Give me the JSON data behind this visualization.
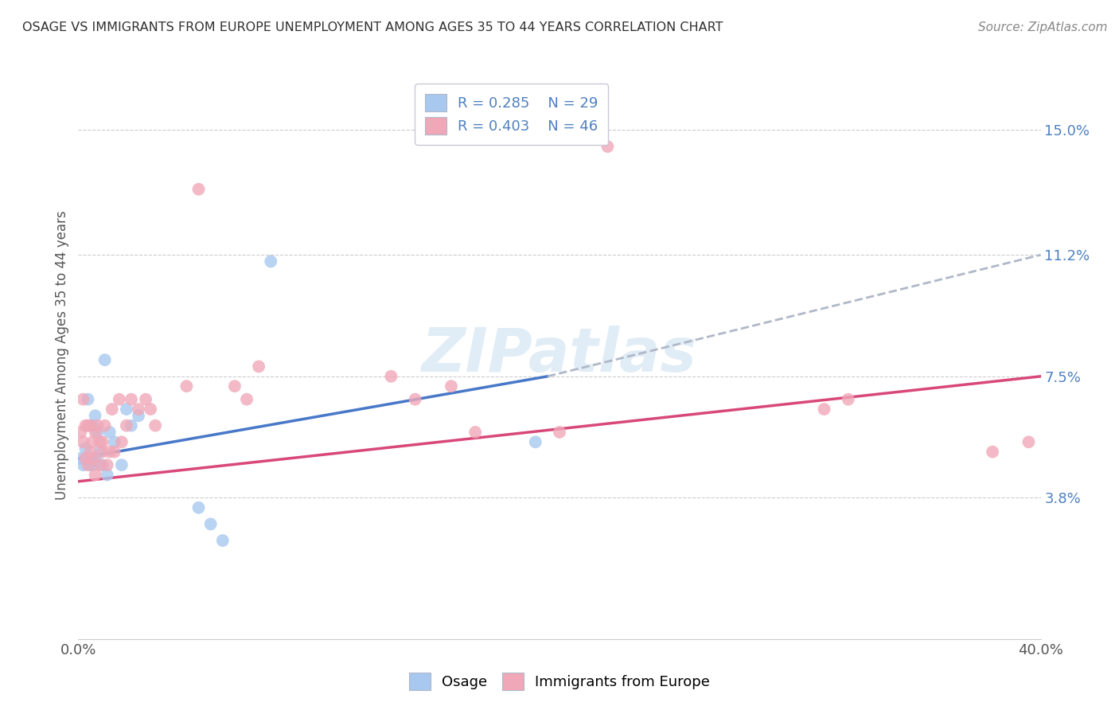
{
  "title": "OSAGE VS IMMIGRANTS FROM EUROPE UNEMPLOYMENT AMONG AGES 35 TO 44 YEARS CORRELATION CHART",
  "source": "Source: ZipAtlas.com",
  "ylabel": "Unemployment Among Ages 35 to 44 years",
  "xlim": [
    0.0,
    0.4
  ],
  "ylim": [
    -0.005,
    0.168
  ],
  "ytick_labels_right": [
    "3.8%",
    "7.5%",
    "11.2%",
    "15.0%"
  ],
  "ytick_vals_right": [
    0.038,
    0.075,
    0.112,
    0.15
  ],
  "watermark": "ZIPatlas",
  "legend_R1": "R = 0.285",
  "legend_N1": "N = 29",
  "legend_R2": "R = 0.403",
  "legend_N2": "N = 46",
  "color_osage": "#a8c8f0",
  "color_europe": "#f0a8b8",
  "color_osage_line": "#4878c8",
  "color_europe_line": "#d84878",
  "color_dashed": "#b0b8c8",
  "color_title": "#303030",
  "color_axis_labels": "#5080c0",
  "background": "#ffffff",
  "blue_line_x0": 0.0,
  "blue_line_y0": 0.05,
  "blue_line_x1": 0.195,
  "blue_line_y1": 0.075,
  "dashed_line_x0": 0.195,
  "dashed_line_y0": 0.075,
  "dashed_line_x1": 0.4,
  "dashed_line_y1": 0.112,
  "pink_line_x0": 0.0,
  "pink_line_y0": 0.043,
  "pink_line_x1": 0.4,
  "pink_line_y1": 0.075,
  "osage_x": [
    0.001,
    0.002,
    0.003,
    0.003,
    0.004,
    0.004,
    0.005,
    0.005,
    0.006,
    0.006,
    0.006,
    0.007,
    0.007,
    0.008,
    0.009,
    0.01,
    0.011,
    0.012,
    0.013,
    0.015,
    0.018,
    0.02,
    0.022,
    0.025,
    0.05,
    0.055,
    0.06,
    0.08,
    0.19
  ],
  "osage_y": [
    0.05,
    0.048,
    0.053,
    0.05,
    0.05,
    0.068,
    0.06,
    0.048,
    0.06,
    0.05,
    0.048,
    0.063,
    0.05,
    0.058,
    0.052,
    0.048,
    0.08,
    0.045,
    0.058,
    0.055,
    0.048,
    0.065,
    0.06,
    0.063,
    0.035,
    0.03,
    0.025,
    0.11,
    0.055
  ],
  "europe_x": [
    0.001,
    0.002,
    0.002,
    0.003,
    0.003,
    0.004,
    0.004,
    0.005,
    0.005,
    0.006,
    0.006,
    0.007,
    0.007,
    0.008,
    0.009,
    0.009,
    0.01,
    0.01,
    0.011,
    0.012,
    0.013,
    0.014,
    0.015,
    0.017,
    0.018,
    0.02,
    0.022,
    0.025,
    0.028,
    0.03,
    0.032,
    0.045,
    0.05,
    0.065,
    0.07,
    0.075,
    0.13,
    0.14,
    0.155,
    0.165,
    0.2,
    0.22,
    0.31,
    0.32,
    0.38,
    0.395
  ],
  "europe_y": [
    0.058,
    0.055,
    0.068,
    0.05,
    0.06,
    0.048,
    0.06,
    0.052,
    0.06,
    0.05,
    0.055,
    0.045,
    0.058,
    0.06,
    0.048,
    0.055,
    0.052,
    0.055,
    0.06,
    0.048,
    0.052,
    0.065,
    0.052,
    0.068,
    0.055,
    0.06,
    0.068,
    0.065,
    0.068,
    0.065,
    0.06,
    0.072,
    0.132,
    0.072,
    0.068,
    0.078,
    0.075,
    0.068,
    0.072,
    0.058,
    0.058,
    0.145,
    0.065,
    0.068,
    0.052,
    0.055
  ]
}
